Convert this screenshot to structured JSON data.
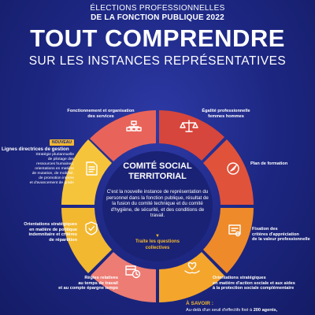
{
  "header": {
    "line1": "ÉLECTIONS PROFESSIONNELLES",
    "line2": "DE LA FONCTION PUBLIQUE 2022",
    "title": "TOUT COMPRENDRE",
    "subtitle": "SUR LES INSTANCES REPRÉSENTATIVES"
  },
  "center": {
    "title_line1": "COMITÉ SOCIAL",
    "title_line2": "TERRITORIAL",
    "description": "C'est la nouvelle instance de représentation du personnel dans la fonction publique, résultat de la fusion du comité technique et du comité d'hygiène, de sécurité, et des conditions de travail.",
    "arrow": "▼",
    "cta_line1": "Traite les questions",
    "cta_line2": "collectives"
  },
  "segments": {
    "fonctionnement": {
      "line1": "Fonctionnement et organisation",
      "line2": "des services"
    },
    "egalite": {
      "line1": "Égalité professionnelle",
      "line2": "femmes hommes"
    },
    "plan_formation": {
      "line1": "Plan de formation"
    },
    "fixation": {
      "line1": "Fixation des",
      "line2": "critères d'appréciation",
      "line3": "de la valeur professionnelle"
    },
    "action_sociale": {
      "line1": "Orientations stratégiques",
      "line2": "en matière d'action sociale et aux aides",
      "line3": "à la protection sociale complémentaire"
    },
    "temps_travail": {
      "line1": "Règles relatives",
      "line2": "au temps de travail",
      "line3": "et au compte épargne temps"
    },
    "politique_indemnitaire": {
      "line1": "Orientations stratégiques",
      "line2": "en matière de politique",
      "line3": "indemnitaire et critères",
      "line4": "de répartition"
    },
    "lignes_directrices": {
      "badge": "NOUVEAU",
      "title": "Lignes directrices de gestion",
      "line1": "Stratégie pluriannuelle",
      "line2": "de pilotage des",
      "line3": "ressources humaines,",
      "line4": "orientations en matière",
      "line5": "de mutation, de mobilité,",
      "line6": "de promotion interne",
      "line7": "et d'avancement de grade"
    }
  },
  "savoir": {
    "title": "À SAVOIR :",
    "text_prefix": "Au-delà d'un seuil d'effectifs fixé à ",
    "text_bold": "200 agents,"
  },
  "colors": {
    "background": "#1c2680",
    "coral": "#e8645a",
    "red": "#d6463c",
    "orange": "#ee8a2a",
    "yellow": "#f2b830",
    "pink": "#ec7c74",
    "white": "#ffffff",
    "icon": "#ffffff"
  },
  "icons": {
    "fonctionnement": "org-chart-icon",
    "egalite": "scales-icon",
    "plan_formation": "compass-icon",
    "fixation": "certificate-icon",
    "action_sociale": "heart-hands-icon",
    "temps_travail": "clock-calendar-icon",
    "politique_indemnitaire": "shield-check-icon",
    "lignes_directrices": "document-icon"
  }
}
